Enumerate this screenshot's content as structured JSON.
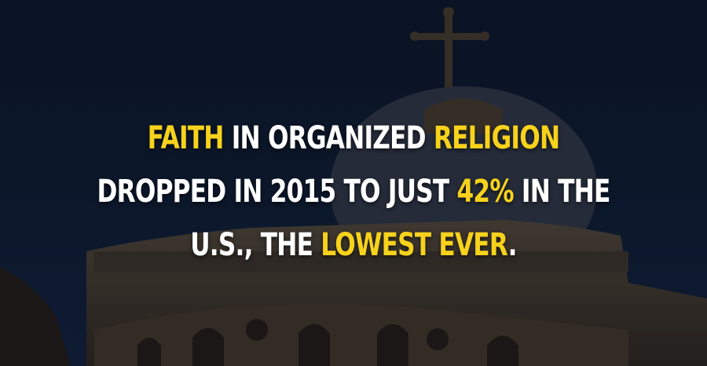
{
  "colors": {
    "highlight": "#f7d21c",
    "text": "#ffffff",
    "sky": "#0f2038"
  },
  "headline": {
    "line1": [
      {
        "text": "FAITH",
        "highlight": true
      },
      {
        "text": " IN ORGANIZED ",
        "highlight": false
      },
      {
        "text": "RELIGION",
        "highlight": true
      }
    ],
    "line2": [
      {
        "text": "DROPPED IN 2015 TO JUST ",
        "highlight": false
      },
      {
        "text": "42%",
        "highlight": true
      },
      {
        "text": " IN THE",
        "highlight": false
      }
    ],
    "line3": [
      {
        "text": "U.S., THE ",
        "highlight": false
      },
      {
        "text": "LOWEST EVER",
        "highlight": true
      },
      {
        "text": ".",
        "highlight": false
      }
    ]
  }
}
